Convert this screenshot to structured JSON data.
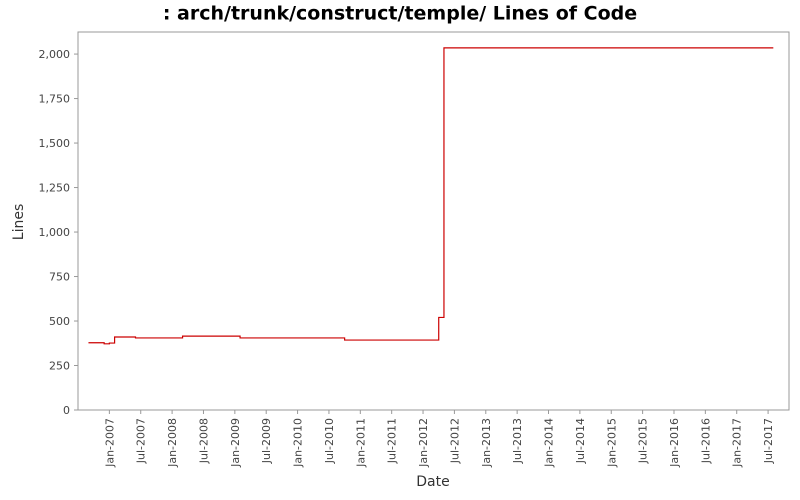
{
  "chart_data": {
    "type": "line",
    "title": ": arch/trunk/construct/temple/ Lines of Code",
    "x_label": "Date",
    "y_label": "Lines",
    "x": [
      "2006-09",
      "2006-12",
      "2007-01",
      "2007-02",
      "2007-06",
      "2008-03",
      "2009-02",
      "2010-10",
      "2012-04",
      "2012-04",
      "2012-05",
      "2012-05",
      "2017-08"
    ],
    "series": [
      {
        "name": "Lines",
        "color": "#cc0000",
        "values": [
          378,
          372,
          376,
          410,
          405,
          415,
          405,
          393,
          430,
          520,
          1870,
          2035,
          2035
        ]
      }
    ],
    "step": true,
    "grid": false,
    "xlim": [
      "2006-07",
      "2017-11"
    ],
    "xticks": [
      {
        "value": "2007-01",
        "label": "Jan-2007"
      },
      {
        "value": "2007-07",
        "label": "Jul-2007"
      },
      {
        "value": "2008-01",
        "label": "Jan-2008"
      },
      {
        "value": "2008-07",
        "label": "Jul-2008"
      },
      {
        "value": "2009-01",
        "label": "Jan-2009"
      },
      {
        "value": "2009-07",
        "label": "Jul-2009"
      },
      {
        "value": "2010-01",
        "label": "Jan-2010"
      },
      {
        "value": "2010-07",
        "label": "Jul-2010"
      },
      {
        "value": "2011-01",
        "label": "Jan-2011"
      },
      {
        "value": "2011-07",
        "label": "Jul-2011"
      },
      {
        "value": "2012-01",
        "label": "Jan-2012"
      },
      {
        "value": "2012-07",
        "label": "Jul-2012"
      },
      {
        "value": "2013-01",
        "label": "Jan-2013"
      },
      {
        "value": "2013-07",
        "label": "Jul-2013"
      },
      {
        "value": "2014-01",
        "label": "Jan-2014"
      },
      {
        "value": "2014-07",
        "label": "Jul-2014"
      },
      {
        "value": "2015-01",
        "label": "Jan-2015"
      },
      {
        "value": "2015-07",
        "label": "Jul-2015"
      },
      {
        "value": "2016-01",
        "label": "Jan-2016"
      },
      {
        "value": "2016-07",
        "label": "Jul-2016"
      },
      {
        "value": "2017-01",
        "label": "Jan-2017"
      },
      {
        "value": "2017-07",
        "label": "Jul-2017"
      }
    ],
    "ylim": [
      0,
      2124
    ],
    "yticks": [
      0,
      250,
      500,
      750,
      {
        "value": 1000,
        "label": "1,000"
      },
      {
        "value": 1250,
        "label": "1,250"
      },
      {
        "value": 1500,
        "label": "1,500"
      },
      {
        "value": 1750,
        "label": "1,750"
      },
      {
        "value": 2000,
        "label": "2,000"
      }
    ]
  }
}
